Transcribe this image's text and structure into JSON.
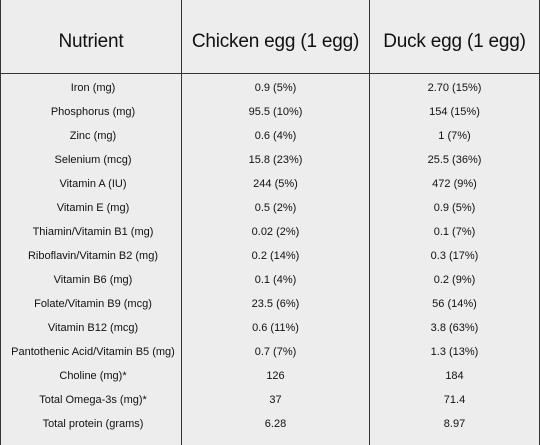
{
  "table": {
    "headers": [
      "Nutrient",
      "Chicken egg (1 egg)",
      "Duck egg (1 egg)"
    ],
    "rows": [
      [
        "Iron (mg)",
        "0.9 (5%)",
        "2.70 (15%)"
      ],
      [
        "Phosphorus (mg)",
        "95.5 (10%)",
        "154 (15%)"
      ],
      [
        "Zinc (mg)",
        "0.6 (4%)",
        "1 (7%)"
      ],
      [
        "Selenium (mcg)",
        "15.8 (23%)",
        "25.5 (36%)"
      ],
      [
        "Vitamin A (IU)",
        "244 (5%)",
        "472 (9%)"
      ],
      [
        "Vitamin E (mg)",
        "0.5 (2%)",
        "0.9 (5%)"
      ],
      [
        "Thiamin/Vitamin B1 (mg)",
        "0.02 (2%)",
        "0.1 (7%)"
      ],
      [
        "Riboflavin/Vitamin B2 (mg)",
        "0.2 (14%)",
        "0.3 (17%)"
      ],
      [
        "Vitamin B6 (mg)",
        "0.1 (4%)",
        "0.2 (9%)"
      ],
      [
        "Folate/Vitamin B9 (mcg)",
        "23.5 (6%)",
        "56 (14%)"
      ],
      [
        "Vitamin B12 (mcg)",
        "0.6 (11%)",
        "3.8 (63%)"
      ],
      [
        "Pantothenic Acid/Vitamin B5 (mg)",
        "0.7 (7%)",
        "1.3 (13%)"
      ],
      [
        "Choline (mg)*",
        "126",
        "184"
      ],
      [
        "Total Omega-3s (mg)*",
        "37",
        "71.4"
      ],
      [
        "Total protein (grams)",
        "6.28",
        "8.97"
      ]
    ]
  }
}
